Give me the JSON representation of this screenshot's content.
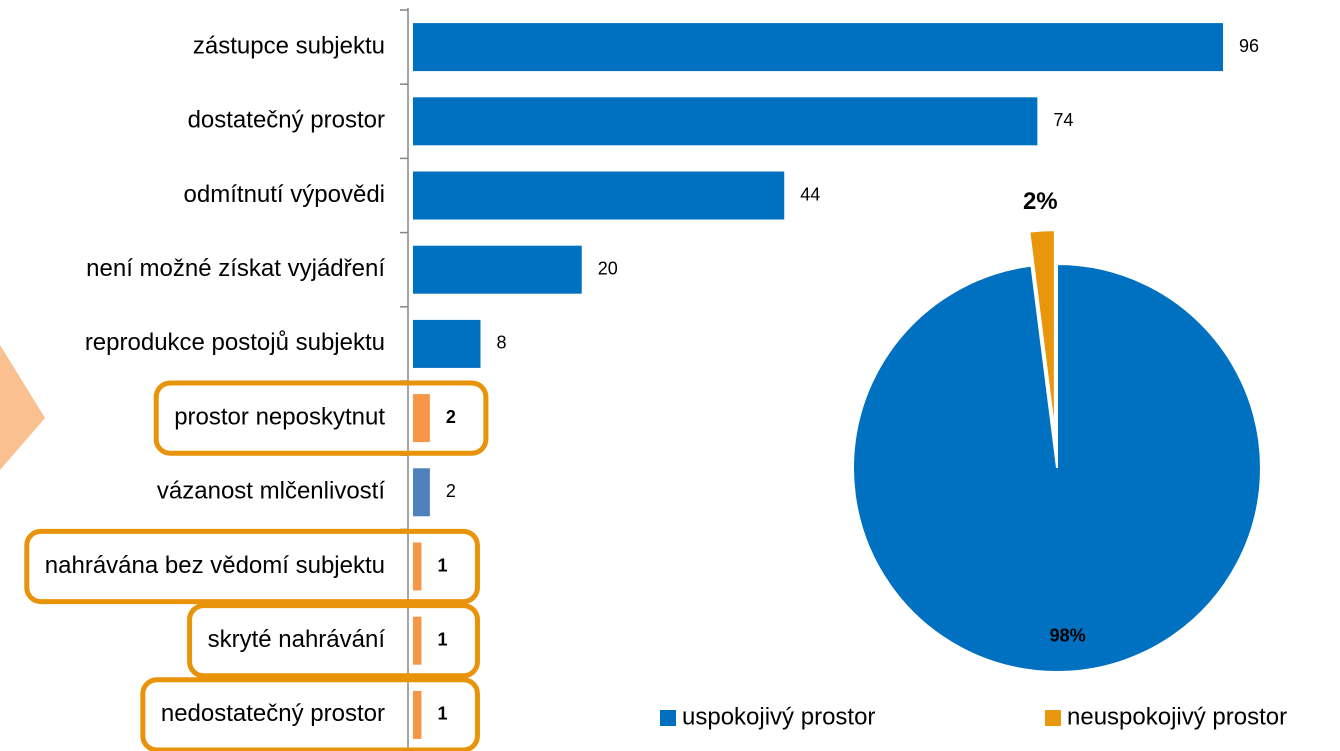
{
  "chart_data": [
    {
      "type": "bar",
      "categories": [
        "zástupce subjektu",
        "dostatečný prostor",
        "odmítnutí výpovědi",
        "není možné získat vyjádření",
        "reprodukce postojů subjektu",
        "prostor neposkytnut",
        "vázanost mlčenlivostí",
        "nahrávána bez vědomí subjektu",
        "skryté nahrávání",
        "nedostatečný prostor"
      ],
      "values": [
        96,
        74,
        44,
        20,
        8,
        2,
        2,
        1,
        1,
        1
      ],
      "colors": [
        "#0070c0",
        "#0070c0",
        "#0070c0",
        "#0070c0",
        "#0070c0",
        "#f79646",
        "#4f81bd",
        "#f79646",
        "#f79646",
        "#f79646"
      ],
      "xlim": [
        0,
        96
      ],
      "highlighted": [
        5,
        7,
        8,
        9
      ],
      "highlight_color": "#e8930a"
    },
    {
      "type": "pie",
      "categories": [
        "uspokojivý prostor",
        "neuspokojivý prostor"
      ],
      "values": [
        98,
        2
      ],
      "value_labels": [
        "98%",
        "2%"
      ],
      "colors": [
        "#0070c0",
        "#e8960c"
      ],
      "exploded": 1,
      "legend": "bottom"
    }
  ]
}
